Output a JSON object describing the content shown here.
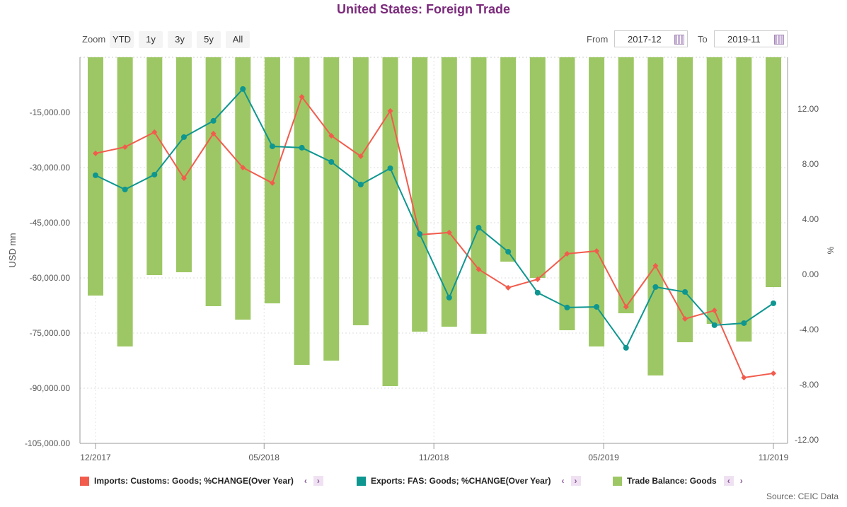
{
  "header": {
    "title": "United States: Foreign Trade"
  },
  "toolbar": {
    "zoom_label": "Zoom",
    "buttons": [
      "YTD",
      "1y",
      "3y",
      "5y",
      "All"
    ],
    "from_label": "From",
    "from_value": "2017-12",
    "to_label": "To",
    "to_value": "2019-11",
    "calendar_icon": "calendar-icon"
  },
  "chart_data": {
    "type": "bar+line",
    "title": "United States: Foreign Trade",
    "x": [
      "2017-12",
      "2018-01",
      "2018-02",
      "2018-03",
      "2018-04",
      "2018-05",
      "2018-06",
      "2018-07",
      "2018-08",
      "2018-09",
      "2018-10",
      "2018-11",
      "2018-12",
      "2019-01",
      "2019-02",
      "2019-03",
      "2019-04",
      "2019-05",
      "2019-06",
      "2019-07",
      "2019-08",
      "2019-09",
      "2019-10",
      "2019-11"
    ],
    "xticks": [
      "12/2017",
      "05/2018",
      "11/2018",
      "05/2019",
      "11/2019"
    ],
    "ylabel_left": "USD mn",
    "ylabel_right": "%",
    "yticks_left": [
      "-15,000.00",
      "-30,000.00",
      "-45,000.00",
      "-60,000.00",
      "-75,000.00",
      "-90,000.00",
      "-105,000.00"
    ],
    "yticks_right": [
      "12.00",
      "8.00",
      "4.00",
      "0.00",
      "-4.00",
      "-8.00",
      "-12.00"
    ],
    "ylim_left": [
      -105000,
      0
    ],
    "ylim_right": [
      -12.26,
      15.74
    ],
    "grid": true,
    "legend_position": "bottom",
    "series": [
      {
        "name": "Imports: Customs: Goods; %CHANGE(Over Year)",
        "type": "line",
        "axis": "right",
        "color": "#f25c4d",
        "values": [
          8.77,
          9.23,
          10.31,
          6.97,
          10.21,
          7.74,
          6.62,
          12.87,
          10.05,
          8.56,
          11.85,
          2.87,
          3.03,
          0.36,
          -0.97,
          -0.36,
          1.49,
          1.69,
          -2.36,
          0.62,
          -3.23,
          -2.62,
          -7.49,
          -7.18
        ]
      },
      {
        "name": "Exports: FAS: Goods; %CHANGE(Over Year)",
        "type": "line",
        "axis": "right",
        "color": "#0e9690",
        "values": [
          7.18,
          6.15,
          7.23,
          9.95,
          11.13,
          13.44,
          9.28,
          9.18,
          8.15,
          6.51,
          7.69,
          2.92,
          -1.69,
          3.38,
          1.64,
          -1.33,
          -2.41,
          -2.36,
          -5.33,
          -0.92,
          -1.28,
          -3.69,
          -3.54,
          -2.1
        ]
      },
      {
        "name": "Trade Balance: Goods",
        "type": "bar",
        "axis": "left",
        "color": "#9dc764",
        "values": [
          -64800,
          -78650,
          -59230,
          -58460,
          -67690,
          -71350,
          -66920,
          -83650,
          -82500,
          -72880,
          -89420,
          -74620,
          -73270,
          -75190,
          -55580,
          -60000,
          -74230,
          -78650,
          -69620,
          -86540,
          -77500,
          -72500,
          -77310,
          -62500
        ]
      }
    ]
  },
  "footer": {
    "source": "Source: CEIC Data"
  }
}
